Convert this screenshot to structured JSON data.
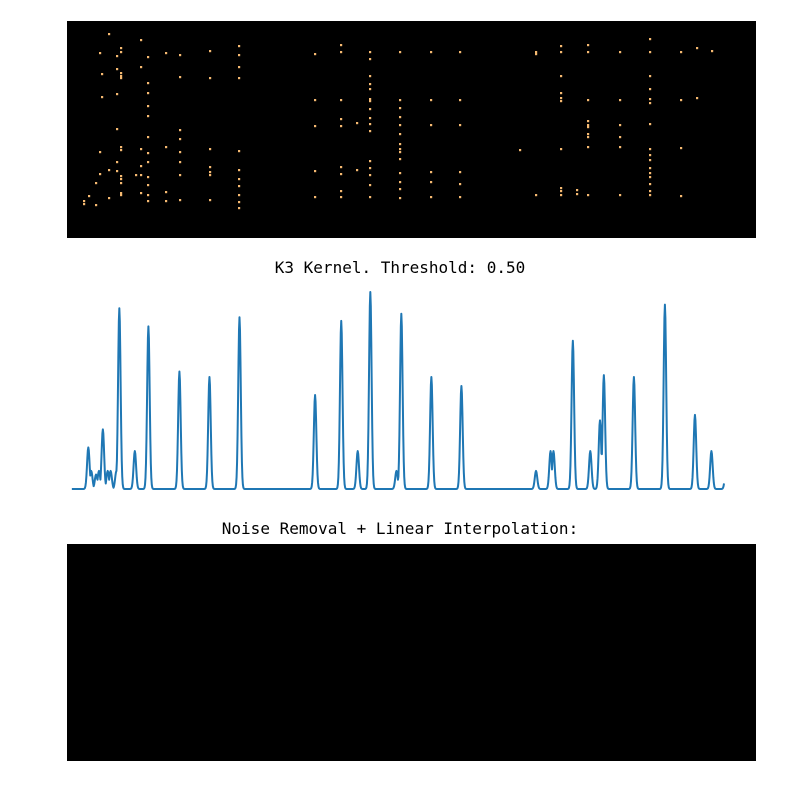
{
  "titles": {
    "signal": "K3 Kernel. Threshold: 0.50",
    "result": "Noise Removal + Linear Interpolation:"
  },
  "colors": {
    "panel_background": "#000000",
    "dot": "#f5b971",
    "line": "#1f77b4"
  },
  "chart_data": [
    {
      "type": "scatter",
      "name": "input-points",
      "title": "",
      "xlim": [
        0,
        689
      ],
      "ylim": [
        0,
        217
      ],
      "columns": [
        [
          17,
          [
            180,
            183
          ]
        ],
        [
          22,
          [
            175
          ]
        ],
        [
          29,
          [
            162,
            184
          ]
        ],
        [
          33,
          [
            32,
            131,
            153
          ]
        ],
        [
          35,
          [
            53,
            76
          ]
        ],
        [
          42,
          [
            13,
            149,
            177
          ]
        ],
        [
          50,
          [
            35,
            48,
            73,
            108,
            141,
            150
          ]
        ],
        [
          54,
          [
            27,
            31,
            52,
            55,
            57,
            126,
            129,
            155,
            158,
            162,
            172,
            174
          ]
        ],
        [
          69,
          [
            154
          ]
        ],
        [
          74,
          [
            19,
            46,
            128,
            145,
            154,
            172
          ]
        ],
        [
          81,
          [
            36,
            62,
            72,
            85,
            95,
            116,
            132,
            141,
            156,
            164,
            174,
            180
          ]
        ],
        [
          99,
          [
            32,
            126,
            171,
            180
          ]
        ],
        [
          113,
          [
            34,
            56,
            109,
            118,
            131,
            141,
            154,
            179
          ]
        ],
        [
          143,
          [
            30,
            57,
            128,
            146,
            151,
            154,
            179
          ]
        ],
        [
          172,
          [
            25,
            34,
            46,
            57,
            130,
            149,
            158,
            165,
            174,
            181,
            187
          ]
        ],
        [
          248,
          [
            33,
            79,
            105,
            150,
            176
          ]
        ],
        [
          274,
          [
            24,
            31,
            79,
            98,
            105,
            146,
            153,
            170,
            176
          ]
        ],
        [
          290,
          [
            102,
            149
          ]
        ],
        [
          303,
          [
            31,
            38,
            55,
            63,
            68,
            78,
            80,
            88,
            97,
            103,
            110,
            140,
            147,
            154,
            164,
            176
          ]
        ],
        [
          333,
          [
            31,
            79,
            87,
            96,
            104,
            113,
            123,
            128,
            131,
            138,
            152,
            161,
            168,
            177
          ]
        ],
        [
          364,
          [
            31,
            79,
            104,
            151,
            161,
            176
          ]
        ],
        [
          393,
          [
            31,
            79,
            104,
            151,
            163,
            176
          ]
        ],
        [
          453,
          [
            129
          ]
        ],
        [
          469,
          [
            31,
            33,
            174
          ]
        ],
        [
          494,
          [
            25,
            31,
            55,
            72,
            77,
            80,
            128,
            167,
            170,
            174
          ]
        ],
        [
          510,
          [
            169,
            173
          ]
        ],
        [
          521,
          [
            24,
            31,
            79,
            100,
            104,
            106,
            113,
            116,
            126,
            174
          ]
        ],
        [
          553,
          [
            31,
            79,
            104,
            116,
            126,
            174
          ]
        ],
        [
          583,
          [
            18,
            31,
            55,
            68,
            78,
            82,
            103,
            128,
            134,
            139,
            147,
            152,
            156,
            163,
            170,
            174
          ]
        ],
        [
          614,
          [
            31,
            79,
            127,
            175
          ]
        ],
        [
          630,
          [
            27,
            77
          ]
        ],
        [
          645,
          [
            30
          ]
        ]
      ]
    },
    {
      "type": "line",
      "name": "kernel-response",
      "title": "K3 Kernel. Threshold: 0.50",
      "xlim": [
        -5,
        706
      ],
      "ylim": [
        0,
        1.09
      ],
      "baseline": 0,
      "peaks": [
        [
          17,
          0.23
        ],
        [
          20,
          0.1
        ],
        [
          25,
          0.08
        ],
        [
          28,
          0.1
        ],
        [
          32,
          0.33
        ],
        [
          37,
          0.1
        ],
        [
          40,
          0.1
        ],
        [
          46,
          0.1
        ],
        [
          49,
          1.0
        ],
        [
          65,
          0.21
        ],
        [
          79,
          0.9
        ],
        [
          111,
          0.65
        ],
        [
          142,
          0.62
        ],
        [
          173,
          0.95
        ],
        [
          251,
          0.52
        ],
        [
          278,
          0.93
        ],
        [
          295,
          0.21
        ],
        [
          308,
          1.09
        ],
        [
          335,
          0.1
        ],
        [
          340,
          0.97
        ],
        [
          371,
          0.62
        ],
        [
          402,
          0.57
        ],
        [
          479,
          0.1
        ],
        [
          494,
          0.21
        ],
        [
          497,
          0.21
        ],
        [
          517,
          0.82
        ],
        [
          535,
          0.21
        ],
        [
          545,
          0.38
        ],
        [
          549,
          0.63
        ],
        [
          580,
          0.62
        ],
        [
          612,
          1.02
        ],
        [
          643,
          0.41
        ],
        [
          660,
          0.21
        ],
        [
          675,
          0.1
        ]
      ]
    }
  ]
}
